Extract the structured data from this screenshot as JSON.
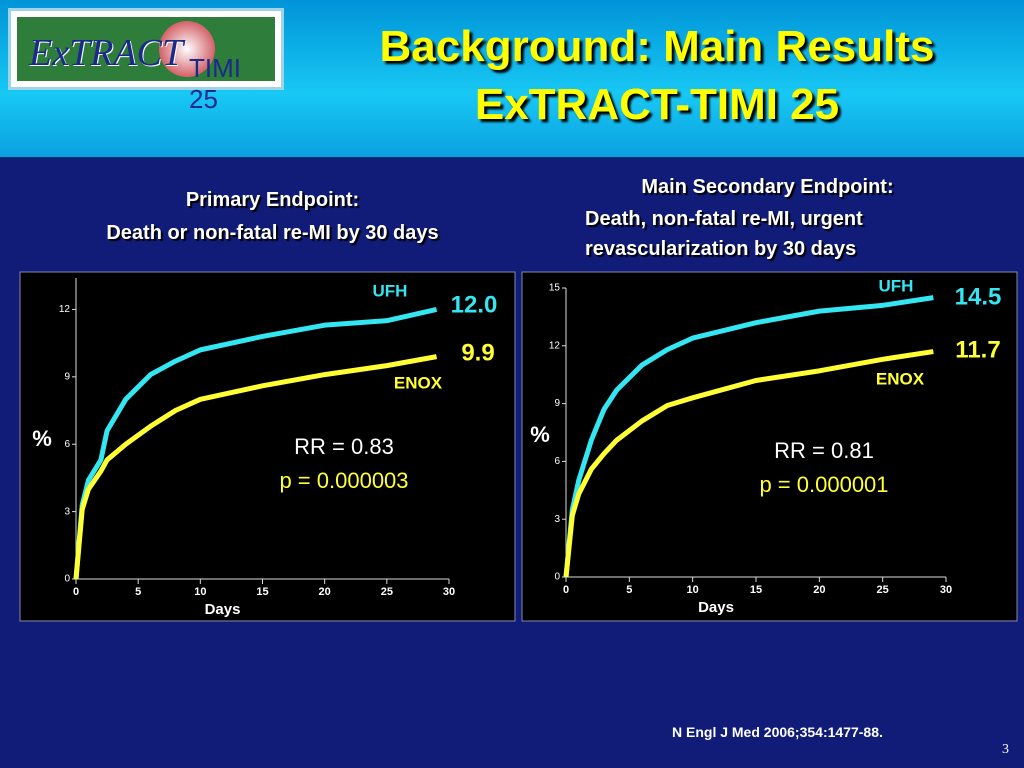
{
  "slide": {
    "logo_left": "ExTRACT",
    "logo_right": "TIMI 25",
    "title_line1": "Background: Main Results",
    "title_line2": "ExTRACT-TIMI 25",
    "citation": "N Engl J Med 2006;354:1477-88.",
    "page_number": "3"
  },
  "chart_data": [
    {
      "type": "line",
      "title": "Primary Endpoint:",
      "subtitle": "Death or non-fatal re-MI by 30 days",
      "x_label": "Days",
      "y_label": "%",
      "x": [
        0,
        0.5,
        1,
        2,
        2.5,
        4,
        6,
        8,
        10,
        15,
        20,
        25,
        29
      ],
      "series": [
        {
          "name": "UFH",
          "color": "#33e6f2",
          "values": [
            0,
            3.3,
            4.4,
            5.3,
            6.6,
            8.0,
            9.1,
            9.7,
            10.2,
            10.8,
            11.3,
            11.5,
            12.0
          ],
          "value_labels": [
            null,
            null,
            null,
            null,
            null,
            null,
            null,
            null,
            null,
            null,
            null,
            null,
            "12.0"
          ]
        },
        {
          "name": "ENOX",
          "color": "#ffff33",
          "values": [
            0,
            3.1,
            4.0,
            4.8,
            5.3,
            6.0,
            6.8,
            7.5,
            8.0,
            8.6,
            9.1,
            9.5,
            9.9
          ],
          "value_labels": [
            null,
            null,
            null,
            null,
            null,
            null,
            null,
            null,
            null,
            null,
            null,
            null,
            "9.9"
          ]
        }
      ],
      "xlim": [
        0,
        30
      ],
      "xticks": [
        0,
        5,
        10,
        15,
        20,
        25,
        30
      ],
      "ylim": [
        0,
        13.4
      ],
      "yticks": [
        0,
        3,
        6,
        9,
        12
      ],
      "annotations": [
        "RR = 0.83",
        "p = 0.000003"
      ]
    },
    {
      "type": "line",
      "title": "Main Secondary Endpoint:",
      "subtitle": "Death, non-fatal re-MI, urgent revascularization by 30 days",
      "x_label": "Days",
      "y_label": "%",
      "x": [
        0,
        0.5,
        1,
        2,
        3,
        4,
        6,
        8,
        10,
        15,
        20,
        25,
        29
      ],
      "series": [
        {
          "name": "UFH",
          "color": "#33e6f2",
          "values": [
            0,
            3.5,
            5.0,
            7.1,
            8.7,
            9.7,
            11.0,
            11.8,
            12.4,
            13.2,
            13.8,
            14.1,
            14.5
          ],
          "value_labels": [
            null,
            null,
            null,
            null,
            null,
            null,
            null,
            null,
            null,
            null,
            null,
            null,
            "14.5"
          ]
        },
        {
          "name": "ENOX",
          "color": "#ffff33",
          "values": [
            0,
            3.2,
            4.3,
            5.6,
            6.4,
            7.1,
            8.1,
            8.9,
            9.3,
            10.2,
            10.7,
            11.3,
            11.7
          ],
          "value_labels": [
            null,
            null,
            null,
            null,
            null,
            null,
            null,
            null,
            null,
            null,
            null,
            null,
            "11.7"
          ]
        }
      ],
      "xlim": [
        0,
        30
      ],
      "xticks": [
        0,
        5,
        10,
        15,
        20,
        25,
        30
      ],
      "ylim": [
        0,
        15
      ],
      "yticks": [
        0,
        3,
        6,
        9,
        12,
        15
      ],
      "annotations": [
        "RR = 0.81",
        "p = 0.000001"
      ]
    }
  ]
}
